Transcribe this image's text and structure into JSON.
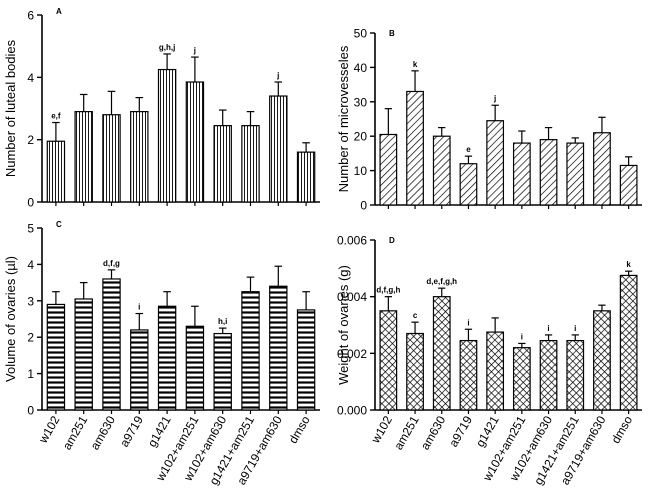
{
  "chart_data": [
    {
      "panel": "A",
      "type": "bar",
      "ylabel": "Number of luteal bodies",
      "xlabel": "",
      "ylim": [
        0,
        6
      ],
      "yticks": [
        0,
        2,
        4,
        6
      ],
      "ytick_labels": [
        "0",
        "2",
        "4",
        "6"
      ],
      "pattern": "vertical-lines",
      "categories": [
        "w102",
        "am251",
        "am630",
        "a9719",
        "g1421",
        "w102+am251",
        "w102+am630",
        "g1421+am251",
        "a9719+am630",
        "dmso"
      ],
      "values": [
        1.95,
        2.9,
        2.8,
        2.9,
        4.25,
        3.85,
        2.45,
        2.45,
        3.4,
        1.6
      ],
      "errors": [
        0.6,
        0.55,
        0.75,
        0.45,
        0.5,
        0.8,
        0.5,
        0.45,
        0.45,
        0.3
      ],
      "annotations": [
        "e,f",
        "",
        "",
        "",
        "g,h,j",
        "j",
        "",
        "",
        "j",
        ""
      ],
      "show_xticklabels": false
    },
    {
      "panel": "B",
      "type": "bar",
      "ylabel": "Number of microvesseles",
      "xlabel": "",
      "ylim": [
        0,
        50
      ],
      "yticks": [
        0,
        10,
        20,
        30,
        40,
        50
      ],
      "ytick_labels": [
        "0",
        "10",
        "20",
        "30",
        "40",
        "50"
      ],
      "pattern": "diagonal-lines",
      "categories": [
        "w102",
        "am251",
        "am630",
        "a9719",
        "g1421",
        "w102+am251",
        "w102+am630",
        "g1421+am251",
        "a9719+am630",
        "dmso"
      ],
      "values": [
        20.5,
        33,
        20,
        12,
        24.5,
        18,
        19,
        18,
        21,
        11.5
      ],
      "errors": [
        7.5,
        6,
        2.5,
        2.2,
        4.5,
        3.5,
        3.5,
        1.5,
        4.5,
        2.5
      ],
      "annotations": [
        "",
        "k",
        "",
        "e",
        "j",
        "",
        "",
        "",
        "",
        ""
      ],
      "show_xticklabels": false
    },
    {
      "panel": "C",
      "type": "bar",
      "ylabel": "Volume of ovaries (µl)",
      "xlabel": "",
      "ylim": [
        0,
        5
      ],
      "yticks": [
        0,
        1,
        2,
        3,
        4,
        5
      ],
      "ytick_labels": [
        "0",
        "1",
        "2",
        "3",
        "4",
        "5"
      ],
      "pattern": "horizontal-lines",
      "categories": [
        "w102",
        "am251",
        "am630",
        "a9719",
        "g1421",
        "w102+am251",
        "w102+am630",
        "g1421+am251",
        "a9719+am630",
        "dmso"
      ],
      "values": [
        2.9,
        3.05,
        3.6,
        2.2,
        2.85,
        2.3,
        2.1,
        3.25,
        3.4,
        2.75
      ],
      "errors": [
        0.35,
        0.45,
        0.25,
        0.45,
        0.4,
        0.55,
        0.15,
        0.4,
        0.55,
        0.5
      ],
      "annotations": [
        "",
        "",
        "d,f,g",
        "i",
        "",
        "",
        "h,i",
        "",
        "",
        ""
      ],
      "show_xticklabels": true
    },
    {
      "panel": "D",
      "type": "bar",
      "ylabel": "Weight of ovaries (g)",
      "xlabel": "",
      "ylim": [
        0,
        0.006
      ],
      "yticks": [
        0,
        0.002,
        0.004,
        0.006
      ],
      "ytick_labels": [
        "0.000",
        "0.002",
        "0.004",
        "0.006"
      ],
      "pattern": "crosshatch",
      "categories": [
        "w102",
        "am251",
        "am630",
        "a9719",
        "g1421",
        "w102+am251",
        "w102+am630",
        "g1421+am251",
        "a9719+am630",
        "dmso"
      ],
      "values": [
        0.0035,
        0.0027,
        0.004,
        0.00245,
        0.00275,
        0.0022,
        0.00245,
        0.00245,
        0.0035,
        0.00475
      ],
      "errors": [
        0.0005,
        0.0004,
        0.0003,
        0.0004,
        0.0005,
        0.00015,
        0.0002,
        0.0002,
        0.0002,
        0.00015
      ],
      "annotations": [
        "d,f,g,h",
        "c",
        "d,e,f,g,h",
        "i",
        "",
        "i",
        "i",
        "i",
        "",
        "k"
      ],
      "show_xticklabels": true
    }
  ]
}
